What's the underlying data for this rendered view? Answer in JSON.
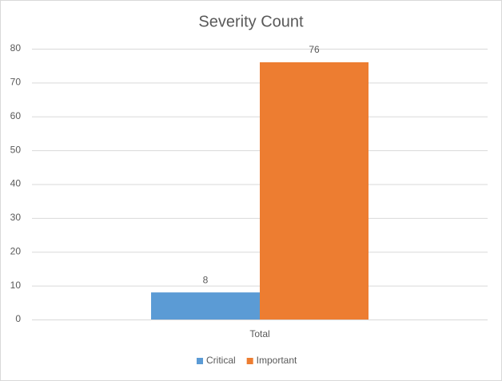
{
  "chart_data": {
    "type": "bar",
    "title": "Severity Count",
    "categories": [
      "Total"
    ],
    "series": [
      {
        "name": "Critical",
        "color": "#5b9bd5",
        "values": [
          8
        ]
      },
      {
        "name": "Important",
        "color": "#ed7d31",
        "values": [
          76
        ]
      }
    ],
    "ylim": [
      0,
      80
    ],
    "yticks": [
      0,
      10,
      20,
      30,
      40,
      50,
      60,
      70,
      80
    ],
    "grid": true,
    "legend": "bottom"
  }
}
